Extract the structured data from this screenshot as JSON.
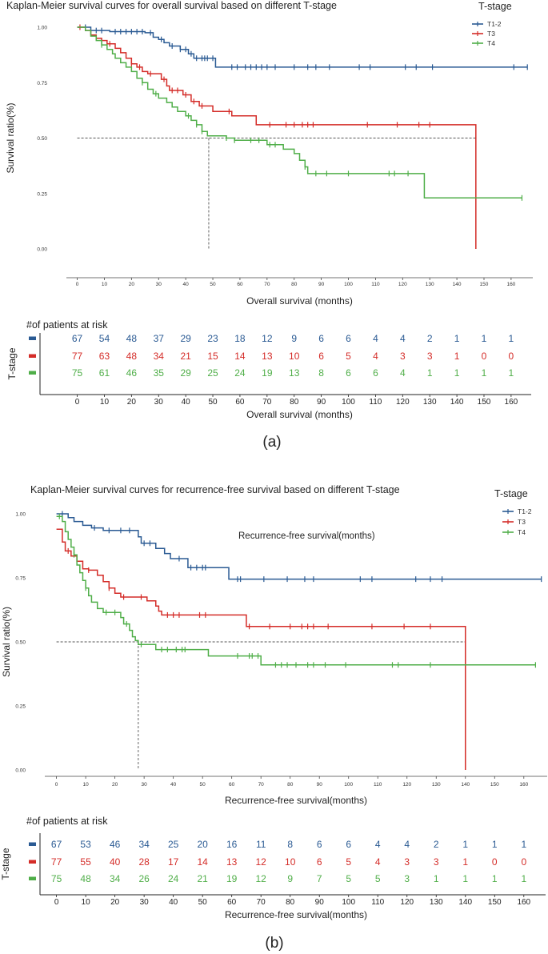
{
  "colors": {
    "t12": "#2a5a93",
    "t3": "#d42c28",
    "t4": "#4fae48"
  },
  "chart_data": [
    {
      "type": "line",
      "panel_label": "(a)",
      "title": "Kaplan-Meier survival curves for overall survival based on different T-stage",
      "xlabel": "Overall survival (months)",
      "ylabel": "Survival ratio(%)",
      "x_ticks": [
        0,
        10,
        20,
        30,
        40,
        50,
        60,
        70,
        80,
        90,
        100,
        110,
        120,
        130,
        140,
        150,
        160
      ],
      "y_ticks": [
        "0.00",
        "0.25",
        "0.50",
        "0.75",
        "1.00"
      ],
      "xlim": [
        -4,
        168
      ],
      "ylim": [
        0,
        1
      ],
      "legend_title": "T-stage",
      "legend": [
        "T1-2",
        "T3",
        "T4"
      ],
      "annotation": "",
      "median_line": {
        "y": 0.5,
        "x_end": 147,
        "x_median": 48.5
      },
      "series": [
        {
          "name": "T1-2",
          "color_key": "t12",
          "steps": [
            [
              0,
              1.0
            ],
            [
              5,
              0.985
            ],
            [
              12,
              0.98
            ],
            [
              25,
              0.975
            ],
            [
              28,
              0.955
            ],
            [
              30,
              0.945
            ],
            [
              32,
              0.93
            ],
            [
              34,
              0.915
            ],
            [
              38,
              0.9
            ],
            [
              41,
              0.88
            ],
            [
              43,
              0.86
            ],
            [
              51,
              0.82
            ],
            [
              166,
              0.82
            ]
          ],
          "censor": [
            3,
            7,
            9,
            14,
            16,
            18,
            20,
            22,
            24,
            27,
            31,
            35,
            38,
            40,
            42,
            44,
            46,
            47,
            48,
            50,
            57,
            59,
            62,
            64,
            66,
            68,
            70,
            73,
            80,
            85,
            88,
            93,
            104,
            108,
            121,
            125,
            131,
            161,
            166
          ]
        },
        {
          "name": "T3",
          "color_key": "t3",
          "steps": [
            [
              0,
              1.0
            ],
            [
              3,
              0.985
            ],
            [
              5,
              0.965
            ],
            [
              7,
              0.95
            ],
            [
              9,
              0.94
            ],
            [
              11,
              0.925
            ],
            [
              14,
              0.905
            ],
            [
              16,
              0.885
            ],
            [
              18,
              0.86
            ],
            [
              20,
              0.835
            ],
            [
              22,
              0.82
            ],
            [
              24,
              0.8
            ],
            [
              26,
              0.79
            ],
            [
              31,
              0.765
            ],
            [
              33,
              0.735
            ],
            [
              34,
              0.715
            ],
            [
              39,
              0.695
            ],
            [
              42,
              0.665
            ],
            [
              45,
              0.645
            ],
            [
              50,
              0.62
            ],
            [
              57,
              0.6
            ],
            [
              66,
              0.56
            ],
            [
              147,
              0.56
            ],
            [
              147,
              0.0
            ]
          ],
          "censor": [
            1,
            12,
            20,
            23,
            27,
            32,
            35,
            37,
            40,
            43,
            46,
            56,
            71,
            77,
            80,
            83,
            85,
            87,
            107,
            118,
            126,
            130
          ]
        },
        {
          "name": "T4",
          "color_key": "t4",
          "steps": [
            [
              0,
              1.0
            ],
            [
              3,
              0.985
            ],
            [
              5,
              0.96
            ],
            [
              7,
              0.94
            ],
            [
              9,
              0.92
            ],
            [
              11,
              0.9
            ],
            [
              13,
              0.88
            ],
            [
              14,
              0.86
            ],
            [
              16,
              0.84
            ],
            [
              18,
              0.82
            ],
            [
              20,
              0.8
            ],
            [
              22,
              0.77
            ],
            [
              24,
              0.75
            ],
            [
              26,
              0.72
            ],
            [
              28,
              0.7
            ],
            [
              30,
              0.68
            ],
            [
              33,
              0.66
            ],
            [
              35,
              0.64
            ],
            [
              37,
              0.62
            ],
            [
              40,
              0.6
            ],
            [
              42,
              0.58
            ],
            [
              44,
              0.56
            ],
            [
              46,
              0.53
            ],
            [
              48,
              0.51
            ],
            [
              55,
              0.5
            ],
            [
              58,
              0.49
            ],
            [
              70,
              0.47
            ],
            [
              76,
              0.45
            ],
            [
              80,
              0.43
            ],
            [
              82,
              0.4
            ],
            [
              84,
              0.37
            ],
            [
              85,
              0.34
            ],
            [
              128,
              0.23
            ],
            [
              164,
              0.23
            ]
          ],
          "censor": [
            9,
            24,
            29,
            41,
            44,
            46,
            55,
            58,
            64,
            67,
            71,
            73,
            84,
            88,
            92,
            100,
            115,
            117,
            122,
            164
          ]
        }
      ],
      "risk_table": {
        "header": "#of patients at risk",
        "ylabel": "T-stage",
        "xlabel": "Overall survival (months)",
        "times": [
          0,
          10,
          20,
          30,
          40,
          50,
          60,
          70,
          80,
          90,
          100,
          110,
          120,
          130,
          140,
          150,
          160
        ],
        "rows": [
          {
            "name": "T1-2",
            "color_key": "t12",
            "values": [
              67,
              54,
              48,
              37,
              29,
              23,
              18,
              12,
              9,
              6,
              6,
              4,
              4,
              2,
              1,
              1,
              1
            ]
          },
          {
            "name": "T3",
            "color_key": "t3",
            "values": [
              77,
              63,
              48,
              34,
              21,
              15,
              14,
              13,
              10,
              6,
              5,
              4,
              3,
              3,
              1,
              0,
              0
            ]
          },
          {
            "name": "T4",
            "color_key": "t4",
            "values": [
              75,
              61,
              46,
              35,
              29,
              25,
              24,
              19,
              13,
              8,
              6,
              6,
              4,
              1,
              1,
              1,
              1
            ]
          }
        ]
      }
    },
    {
      "type": "line",
      "panel_label": "(b)",
      "title": "Kaplan-Meier survival curves for  recurrence-free  survival based on different T-stage",
      "xlabel": "Recurrence-free survival(months)",
      "ylabel": "Survival ratio(%)",
      "x_ticks": [
        0,
        10,
        20,
        30,
        40,
        50,
        60,
        70,
        80,
        90,
        100,
        110,
        120,
        130,
        140,
        150,
        160
      ],
      "y_ticks": [
        "0.00",
        "0.25",
        "0.50",
        "0.75",
        "1.00"
      ],
      "xlim": [
        -4,
        168
      ],
      "ylim": [
        0,
        1
      ],
      "legend_title": "T-stage",
      "legend": [
        "T1-2",
        "T3",
        "T4"
      ],
      "annotation": "Recurrence-free survival(months)",
      "median_line": {
        "y": 0.5,
        "x_end": 140,
        "x_median": 28
      },
      "series": [
        {
          "name": "T1-2",
          "color_key": "t12",
          "steps": [
            [
              0,
              1.0
            ],
            [
              4,
              0.985
            ],
            [
              6,
              0.97
            ],
            [
              9,
              0.955
            ],
            [
              12,
              0.945
            ],
            [
              16,
              0.935
            ],
            [
              28,
              0.91
            ],
            [
              29,
              0.885
            ],
            [
              34,
              0.865
            ],
            [
              37,
              0.845
            ],
            [
              39,
              0.825
            ],
            [
              45,
              0.79
            ],
            [
              59,
              0.745
            ],
            [
              166,
              0.745
            ]
          ],
          "censor": [
            2,
            13,
            18,
            22,
            25,
            30,
            32,
            42,
            46,
            48,
            50,
            51,
            62,
            63,
            71,
            79,
            85,
            88,
            104,
            108,
            123,
            128,
            132,
            166
          ]
        },
        {
          "name": "T3",
          "color_key": "t3",
          "steps": [
            [
              0,
              0.94
            ],
            [
              2,
              0.89
            ],
            [
              3,
              0.855
            ],
            [
              5,
              0.835
            ],
            [
              7,
              0.815
            ],
            [
              9,
              0.785
            ],
            [
              11,
              0.78
            ],
            [
              14,
              0.76
            ],
            [
              16,
              0.735
            ],
            [
              18,
              0.71
            ],
            [
              20,
              0.69
            ],
            [
              22,
              0.675
            ],
            [
              31,
              0.66
            ],
            [
              34,
              0.64
            ],
            [
              35,
              0.62
            ],
            [
              36,
              0.605
            ],
            [
              65,
              0.56
            ],
            [
              140,
              0.56
            ],
            [
              140,
              0.0
            ]
          ],
          "censor": [
            4,
            11,
            18,
            23,
            29,
            38,
            40,
            42,
            49,
            51,
            66,
            73,
            80,
            84,
            86,
            88,
            93,
            108,
            119,
            128
          ]
        },
        {
          "name": "T4",
          "color_key": "t4",
          "steps": [
            [
              0,
              0.99
            ],
            [
              2,
              0.97
            ],
            [
              3,
              0.93
            ],
            [
              4,
              0.9
            ],
            [
              5,
              0.87
            ],
            [
              6,
              0.84
            ],
            [
              7,
              0.8
            ],
            [
              8,
              0.77
            ],
            [
              9,
              0.74
            ],
            [
              10,
              0.71
            ],
            [
              11,
              0.68
            ],
            [
              12,
              0.655
            ],
            [
              14,
              0.63
            ],
            [
              16,
              0.615
            ],
            [
              22,
              0.595
            ],
            [
              23,
              0.57
            ],
            [
              25,
              0.545
            ],
            [
              26,
              0.52
            ],
            [
              27,
              0.505
            ],
            [
              28,
              0.49
            ],
            [
              34,
              0.47
            ],
            [
              52,
              0.445
            ],
            [
              70,
              0.41
            ],
            [
              164,
              0.41
            ]
          ],
          "censor": [
            1,
            6,
            10,
            17,
            20,
            24,
            29,
            36,
            38,
            41,
            43,
            44,
            62,
            66,
            67,
            69,
            75,
            77,
            79,
            82,
            86,
            88,
            92,
            99,
            115,
            117,
            128,
            164
          ]
        }
      ],
      "risk_table": {
        "header": "#of patients at risk",
        "ylabel": "T-stage",
        "xlabel": "Recurrence-free survival(months)",
        "times": [
          0,
          10,
          20,
          30,
          40,
          50,
          60,
          70,
          80,
          90,
          100,
          110,
          120,
          130,
          140,
          150,
          160
        ],
        "rows": [
          {
            "name": "T1-2",
            "color_key": "t12",
            "values": [
              67,
              53,
              46,
              34,
              25,
              20,
              16,
              11,
              8,
              6,
              6,
              4,
              4,
              2,
              1,
              1,
              1
            ]
          },
          {
            "name": "T3",
            "color_key": "t3",
            "values": [
              77,
              55,
              40,
              28,
              17,
              14,
              13,
              12,
              10,
              6,
              5,
              4,
              3,
              3,
              1,
              0,
              0
            ]
          },
          {
            "name": "T4",
            "color_key": "t4",
            "values": [
              75,
              48,
              34,
              26,
              24,
              21,
              19,
              12,
              9,
              7,
              5,
              5,
              3,
              1,
              1,
              1,
              1
            ]
          }
        ]
      }
    }
  ]
}
